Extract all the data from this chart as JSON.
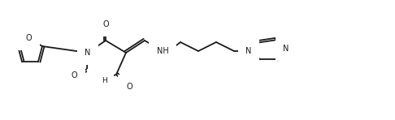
{
  "background": "#ffffff",
  "line_color": "#1a1a1a",
  "line_width": 1.3,
  "font_size": 7.0,
  "fig_width": 4.86,
  "fig_height": 1.48,
  "dpi": 100,
  "xlim": [
    0,
    486
  ],
  "ylim": [
    0,
    148
  ]
}
